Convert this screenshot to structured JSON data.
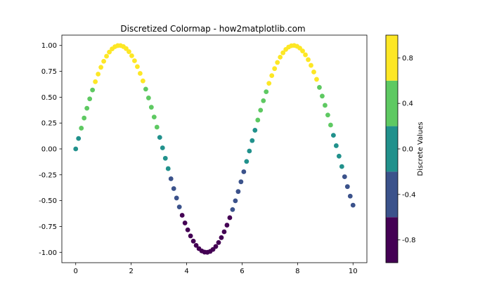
{
  "chart_data": {
    "type": "scatter",
    "title": "Discretized Colormap - how2matplotlib.com",
    "xlabel": "",
    "ylabel": "",
    "xlim": [
      -0.5,
      10.5
    ],
    "ylim": [
      -1.1,
      1.1
    ],
    "x_ticks": [
      0,
      2,
      4,
      6,
      8,
      10
    ],
    "x_tick_labels": [
      "0",
      "2",
      "4",
      "6",
      "8",
      "10"
    ],
    "y_ticks": [
      -1.0,
      -0.75,
      -0.5,
      -0.25,
      0.0,
      0.25,
      0.5,
      0.75,
      1.0
    ],
    "y_tick_labels": [
      "-1.00",
      "-0.75",
      "-0.50",
      "-0.25",
      "0.00",
      "0.25",
      "0.50",
      "0.75",
      "1.00"
    ],
    "grid": false,
    "series": [
      {
        "x_start": 0,
        "x_end": 10,
        "num_points": 100,
        "function": "sin"
      }
    ],
    "colorbar": {
      "label": "Discrete Values",
      "range": [
        -1.0,
        1.0
      ],
      "boundaries": [
        -1.0,
        -0.6,
        -0.2,
        0.2,
        0.6,
        1.0
      ],
      "colors": [
        "#440154",
        "#3b528b",
        "#21918c",
        "#5ec962",
        "#fde725"
      ],
      "ticks": [
        -0.8,
        -0.4,
        0.0,
        0.4,
        0.8
      ],
      "tick_labels": [
        "-0.8",
        "-0.4",
        "0.0",
        "0.4",
        "0.8"
      ]
    }
  }
}
